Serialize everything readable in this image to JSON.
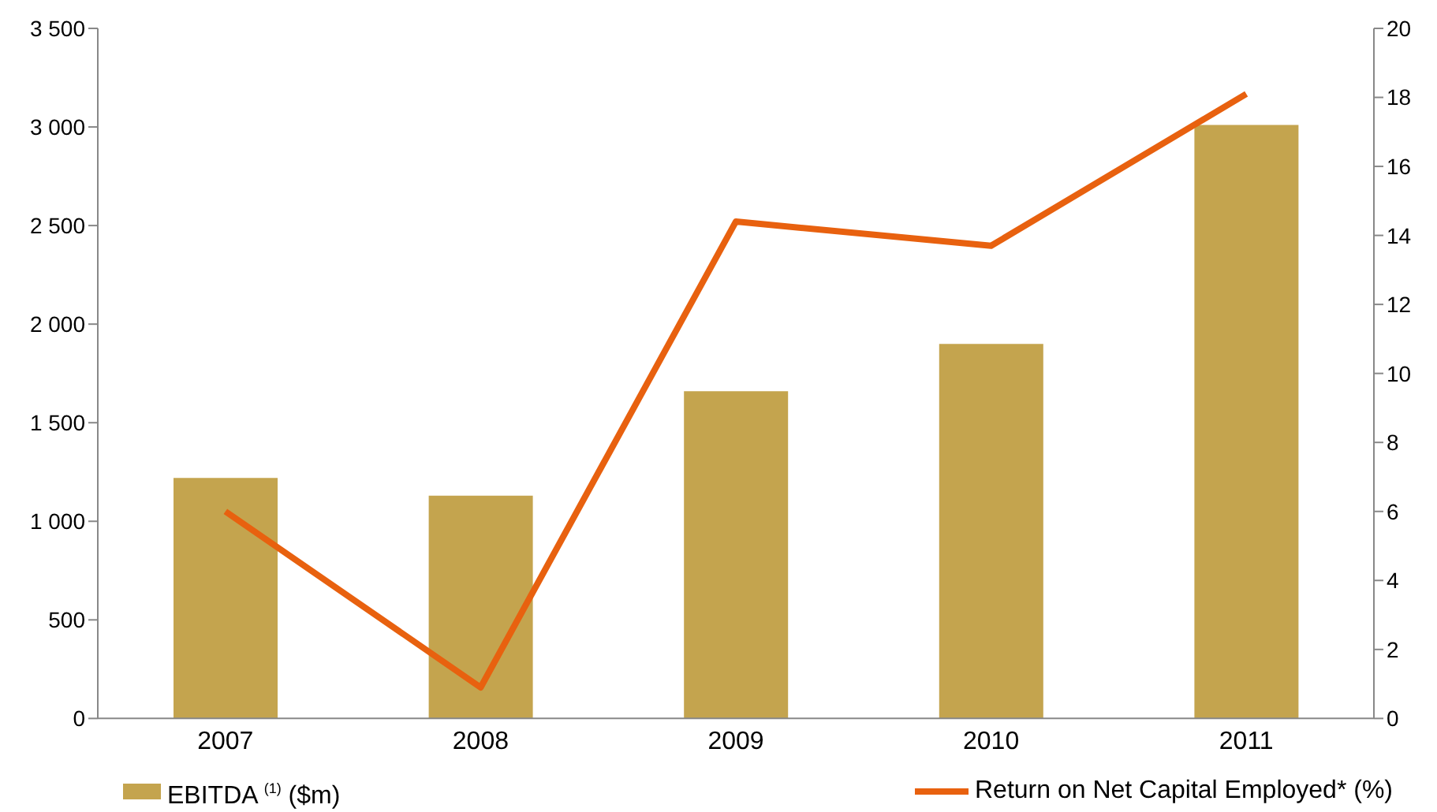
{
  "chart_data": {
    "type": "bar",
    "categories": [
      "2007",
      "2008",
      "2009",
      "2010",
      "2011"
    ],
    "series": [
      {
        "name": "EBITDA $^{(1)}$ ($m)",
        "color": "#c4a44e",
        "values": [
          1220,
          1130,
          1660,
          1900,
          3010
        ]
      },
      {
        "name": "Return on Net Capital Employed*  (%)",
        "type": "line",
        "axis": "y2",
        "color": "#e8610f",
        "values": [
          6.0,
          0.9,
          14.4,
          13.7,
          18.1
        ]
      }
    ],
    "ylim": [
      0,
      3500
    ],
    "yticks": [
      0,
      500,
      {
        "value": 1000,
        "label": "1 000"
      },
      {
        "value": 1500,
        "label": "1 500"
      },
      {
        "value": 2000,
        "label": "2 000"
      },
      {
        "value": 2500,
        "label": "2 500"
      },
      {
        "value": 3000,
        "label": "3 000"
      },
      {
        "value": 3500,
        "label": "3 500"
      }
    ],
    "y2lim": [
      0,
      20
    ],
    "y2ticks": [
      0,
      2,
      4,
      6,
      8,
      10,
      12,
      14,
      16,
      18,
      20
    ],
    "grid": false,
    "legend": "bottom",
    "marker": "none"
  }
}
